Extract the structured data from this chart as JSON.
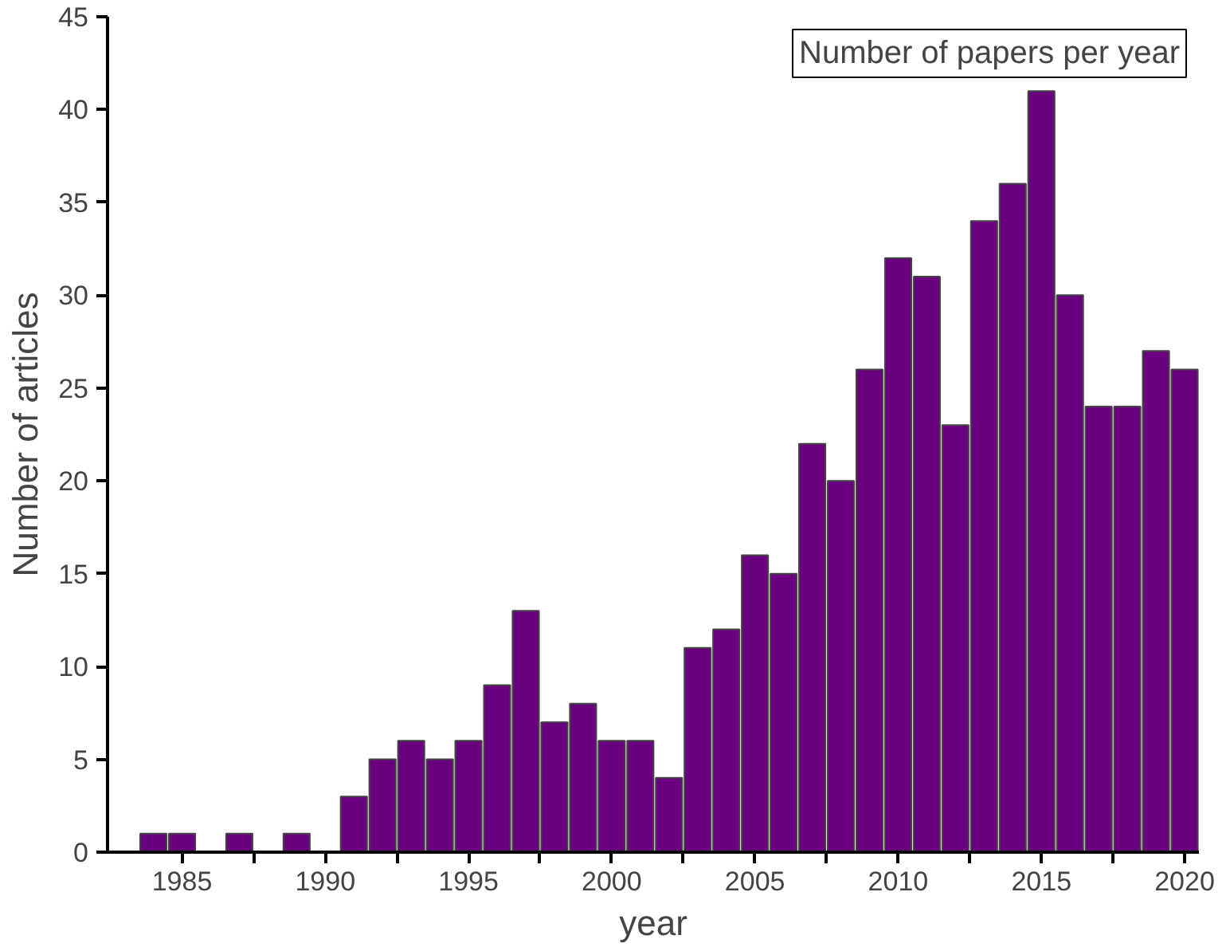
{
  "chart_data": {
    "type": "bar",
    "title": "Number of papers per year",
    "xlabel": "year",
    "ylabel": "Number of articles",
    "x": [
      1984,
      1985,
      1986,
      1987,
      1988,
      1989,
      1990,
      1991,
      1992,
      1993,
      1994,
      1995,
      1996,
      1997,
      1998,
      1999,
      2000,
      2001,
      2002,
      2003,
      2004,
      2005,
      2006,
      2007,
      2008,
      2009,
      2010,
      2011,
      2012,
      2013,
      2014,
      2015,
      2016,
      2017,
      2018,
      2019,
      2020
    ],
    "values": [
      1,
      1,
      0,
      1,
      0,
      1,
      0,
      3,
      5,
      6,
      5,
      6,
      9,
      13,
      7,
      8,
      6,
      6,
      4,
      11,
      12,
      16,
      15,
      22,
      20,
      26,
      32,
      31,
      23,
      34,
      36,
      41,
      30,
      24,
      24,
      27,
      26
    ],
    "color": "#6a0080",
    "xlim": [
      1982.4,
      2020.5
    ],
    "xticks": [
      1985,
      {
        "value": 1987.5,
        "label": null
      },
      1990,
      {
        "value": 1992.5,
        "label": null
      },
      1995,
      {
        "value": 1997.5,
        "label": null
      },
      2000,
      {
        "value": 2002.5,
        "label": null
      },
      2005,
      {
        "value": 2007.5,
        "label": null
      },
      2010,
      {
        "value": 2012.5,
        "label": null
      },
      2015,
      {
        "value": 2017.5,
        "label": null
      },
      2020
    ],
    "ylim": [
      0,
      45
    ],
    "yticks": [
      0,
      5,
      10,
      15,
      20,
      25,
      30,
      35,
      40,
      45
    ]
  }
}
